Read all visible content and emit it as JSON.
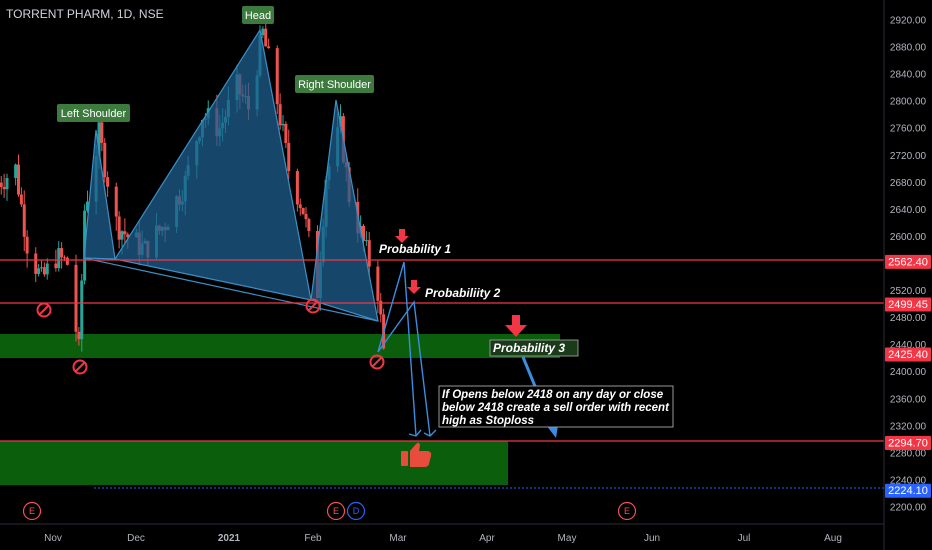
{
  "header": {
    "title": "TORRENT PHARM, 1D, NSE"
  },
  "colors": {
    "background": "#000000",
    "up": "#26a69a",
    "down": "#ef5350",
    "level_line": "#f23645",
    "zone_fill": "#0b5e0b",
    "pattern_fill": "#1e5f8f",
    "pattern_stroke": "#3d8fc4",
    "arrow_blue": "#3b8de0",
    "label_bg": "#3d7a3d",
    "target_line": "#2962ff"
  },
  "pattern_labels": {
    "left_shoulder": "Left Shoulder",
    "head": "Head",
    "right_shoulder": "Right Shoulder"
  },
  "annotations": {
    "probability_1": "Probability 1",
    "probability_2": "Probabiliity 2",
    "probability_3": "Probability 3",
    "note_line1": "If Opens below 2418 on any day or close",
    "note_line2": "below 2418 create a sell order with recent",
    "note_line3": "high as Stoploss"
  },
  "price_tags": [
    {
      "value": "2562.40",
      "type": "red"
    },
    {
      "value": "2499.45",
      "type": "red"
    },
    {
      "value": "2425.40",
      "type": "red"
    },
    {
      "value": "2294.70",
      "type": "red"
    },
    {
      "value": "2224.10",
      "type": "blue"
    }
  ],
  "event_markers": [
    {
      "label": "E",
      "color": "#ef5350"
    },
    {
      "label": "E",
      "color": "#ef5350"
    },
    {
      "label": "D",
      "color": "#2962ff"
    },
    {
      "label": "E",
      "color": "#ef5350"
    }
  ],
  "chart_data": {
    "type": "candlestick",
    "title": "TORRENT PHARM, 1D, NSE",
    "x_tick_labels": [
      "Nov",
      "Dec",
      "2021",
      "Feb",
      "Mar",
      "Apr",
      "May",
      "Jun",
      "Jul",
      "Aug"
    ],
    "y_tick_labels": [
      "2920.00",
      "2880.00",
      "2840.00",
      "2800.00",
      "2760.00",
      "2720.00",
      "2680.00",
      "2640.00",
      "2600.00",
      "2560.00",
      "2520.00",
      "2480.00",
      "2440.00",
      "2400.00",
      "2360.00",
      "2320.00",
      "2280.00",
      "2240.00",
      "2200.00"
    ],
    "ylim": [
      2190,
      2935
    ],
    "horizontal_levels": [
      2562.4,
      2499.45,
      2294.7
    ],
    "support_zones": [
      [
        2418,
        2444
      ],
      [
        2230,
        2294.7
      ]
    ],
    "target_line": 2224.1,
    "candle_anchors": [
      {
        "date": "2020-10-13",
        "close": 2680
      },
      {
        "date": "2020-10-19",
        "close": 2700
      },
      {
        "date": "2020-10-23",
        "close": 2590
      },
      {
        "date": "2020-10-28",
        "close": 2535
      },
      {
        "date": "2020-11-02",
        "close": 2570
      },
      {
        "date": "2020-11-06",
        "close": 2560
      },
      {
        "date": "2020-11-10",
        "close": 2430
      },
      {
        "date": "2020-11-12",
        "close": 2640
      },
      {
        "date": "2020-11-17",
        "close": 2750
      },
      {
        "date": "2020-11-23",
        "close": 2620
      },
      {
        "date": "2020-11-27",
        "close": 2600
      },
      {
        "date": "2020-12-03",
        "close": 2580
      },
      {
        "date": "2020-12-10",
        "close": 2620
      },
      {
        "date": "2020-12-17",
        "close": 2680
      },
      {
        "date": "2020-12-23",
        "close": 2780
      },
      {
        "date": "2020-12-29",
        "close": 2760
      },
      {
        "date": "2021-01-04",
        "close": 2820
      },
      {
        "date": "2021-01-08",
        "close": 2790
      },
      {
        "date": "2021-01-13",
        "close": 2900
      },
      {
        "date": "2021-01-18",
        "close": 2800
      },
      {
        "date": "2021-01-22",
        "close": 2700
      },
      {
        "date": "2021-01-27",
        "close": 2640
      },
      {
        "date": "2021-02-01",
        "close": 2520
      },
      {
        "date": "2021-02-04",
        "close": 2690
      },
      {
        "date": "2021-02-09",
        "close": 2760
      },
      {
        "date": "2021-02-12",
        "close": 2660
      },
      {
        "date": "2021-02-17",
        "close": 2590
      },
      {
        "date": "2021-02-22",
        "close": 2520
      },
      {
        "date": "2021-02-24",
        "close": 2430
      }
    ]
  }
}
